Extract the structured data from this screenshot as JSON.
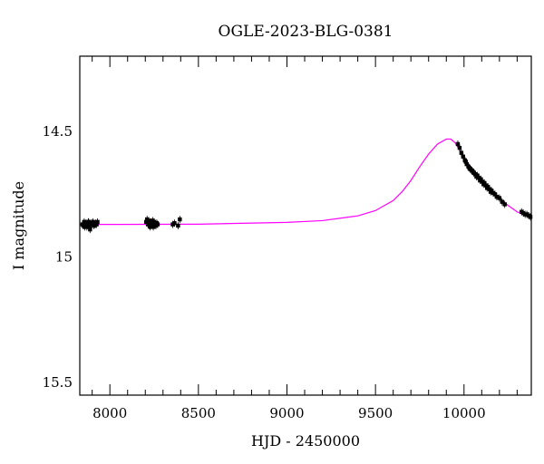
{
  "chart_data": {
    "type": "scatter",
    "title": "OGLE-2023-BLG-0381",
    "xlabel": "HJD - 2450000",
    "ylabel": "I magnitude",
    "xlim": [
      7830,
      10380
    ],
    "ylim": [
      15.55,
      14.2
    ],
    "y_inverted": true,
    "x_ticks": [
      8000,
      8500,
      9000,
      9500,
      10000
    ],
    "y_ticks": [
      14.5,
      15,
      15.5
    ],
    "x_tick_labels": [
      "8000",
      "8500",
      "9000",
      "9500",
      "10000"
    ],
    "y_tick_labels": [
      "14.5",
      "15",
      "15.5"
    ],
    "grid": false,
    "model_color": "#ff00ff",
    "point_color": "#000000",
    "series": [
      {
        "type": "scatter",
        "x": [
          7845,
          7850,
          7855,
          7860,
          7865,
          7870,
          7875,
          7880,
          7885,
          7890,
          7895,
          7900,
          7905,
          7910,
          7915,
          7920,
          7925,
          7930,
          7858,
          7872,
          7888,
          7902,
          7918,
          7878,
          8205,
          8210,
          8215,
          8220,
          8225,
          8230,
          8235,
          8240,
          8245,
          8250,
          8255,
          8260,
          8265,
          8270,
          8228,
          8242,
          8355,
          8365,
          8385,
          8395,
          9965,
          9975,
          9985,
          9995,
          10005,
          10015,
          10025,
          10035,
          10045,
          10055,
          10065,
          10075,
          10085,
          10095,
          10105,
          10115,
          10125,
          10135,
          10145,
          10155,
          10165,
          10175,
          10185,
          10200,
          10215,
          10230,
          10010,
          10030,
          10050,
          10070,
          10090,
          10110,
          10130,
          10150,
          10325,
          10335,
          10345,
          10355,
          10365,
          10375
        ],
        "y": [
          14.87,
          14.875,
          14.86,
          14.87,
          14.865,
          14.88,
          14.87,
          14.86,
          14.875,
          14.87,
          14.865,
          14.87,
          14.86,
          14.875,
          14.87,
          14.865,
          14.87,
          14.86,
          14.88,
          14.875,
          14.89,
          14.865,
          14.87,
          14.86,
          14.86,
          14.85,
          14.87,
          14.855,
          14.875,
          14.86,
          14.865,
          14.87,
          14.88,
          14.86,
          14.87,
          14.875,
          14.865,
          14.87,
          14.88,
          14.855,
          14.87,
          14.865,
          14.875,
          14.85,
          14.55,
          14.565,
          14.585,
          14.6,
          14.615,
          14.63,
          14.64,
          14.65,
          14.655,
          14.665,
          14.67,
          14.675,
          14.685,
          14.69,
          14.7,
          14.705,
          14.715,
          14.72,
          14.73,
          14.735,
          14.745,
          14.75,
          14.76,
          14.765,
          14.78,
          14.79,
          14.62,
          14.645,
          14.66,
          14.68,
          14.695,
          14.71,
          14.725,
          14.74,
          14.82,
          14.825,
          14.83,
          14.83,
          14.835,
          14.84
        ]
      },
      {
        "type": "line",
        "x": [
          7830,
          8000,
          8500,
          9000,
          9200,
          9400,
          9500,
          9600,
          9650,
          9700,
          9750,
          9800,
          9850,
          9900,
          9925,
          9950,
          10000,
          10050,
          10100,
          10150,
          10200,
          10250,
          10300,
          10350,
          10380
        ],
        "y": [
          14.87,
          14.87,
          14.869,
          14.862,
          14.855,
          14.836,
          14.815,
          14.775,
          14.74,
          14.695,
          14.64,
          14.59,
          14.55,
          14.53,
          14.53,
          14.545,
          14.6,
          14.655,
          14.695,
          14.73,
          14.765,
          14.795,
          14.82,
          14.835,
          14.84
        ]
      }
    ]
  }
}
